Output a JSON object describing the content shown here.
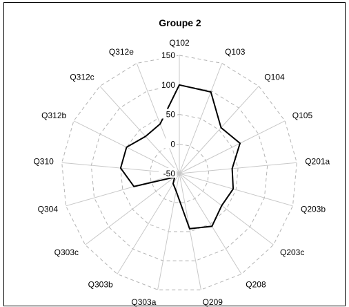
{
  "chart_data": {
    "type": "radar",
    "title": "Groupe 2",
    "categories": [
      "Q102",
      "Q103",
      "Q104",
      "Q105",
      "Q201a",
      "Q203b",
      "Q203c",
      "Q208",
      "Q209",
      "Q303a",
      "Q303b",
      "Q303c",
      "Q304",
      "Q310",
      "Q312b",
      "Q312c",
      "Q312e"
    ],
    "ticks": [
      -50,
      0,
      50,
      100,
      150
    ],
    "rlim": [
      -50,
      150
    ],
    "grid": true,
    "series": [
      {
        "values": [
          100,
          98,
          55,
          65,
          40,
          45,
          40,
          55,
          45,
          -20,
          -30,
          -40,
          30,
          50,
          50,
          35,
          40
        ]
      }
    ],
    "colors": {
      "series": "#000000",
      "gridline": "#b3b3b3",
      "spoke": "#c8c8c8"
    }
  }
}
